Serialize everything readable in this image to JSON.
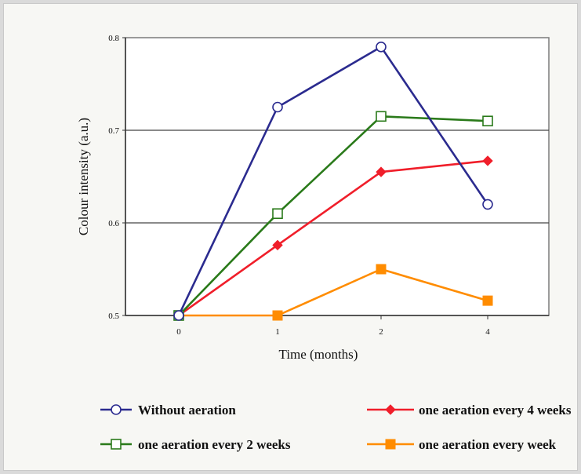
{
  "chart_data": {
    "type": "line",
    "title": "",
    "xlabel": "Time (months)",
    "ylabel": "Colour intensity (a.u.)",
    "x": [
      0,
      1,
      2,
      4
    ],
    "x_tick_labels": [
      "0",
      "1",
      "2",
      "4"
    ],
    "ylim": [
      0.5,
      0.8
    ],
    "y_ticks": [
      "0.5",
      "0.6",
      "0.7",
      "0.8"
    ],
    "grid": "horizontal",
    "legend_position": "bottom",
    "series": [
      {
        "name": "Without aeration",
        "color": "#2b2b8f",
        "marker": "circle-open",
        "values": [
          0.5,
          0.725,
          0.79,
          0.62
        ]
      },
      {
        "name": "one aeration every 4 weeks",
        "color": "#f01e2a",
        "marker": "diamond-filled",
        "values": [
          0.5,
          0.576,
          0.655,
          0.667
        ]
      },
      {
        "name": "one aeration every 2 weeks",
        "color": "#2a7a1a",
        "marker": "square-open",
        "values": [
          0.5,
          0.61,
          0.715,
          0.71
        ]
      },
      {
        "name": "one aeration every week",
        "color": "#ff8c00",
        "marker": "square-filled",
        "values": [
          0.5,
          0.5,
          0.55,
          0.516
        ]
      }
    ]
  }
}
